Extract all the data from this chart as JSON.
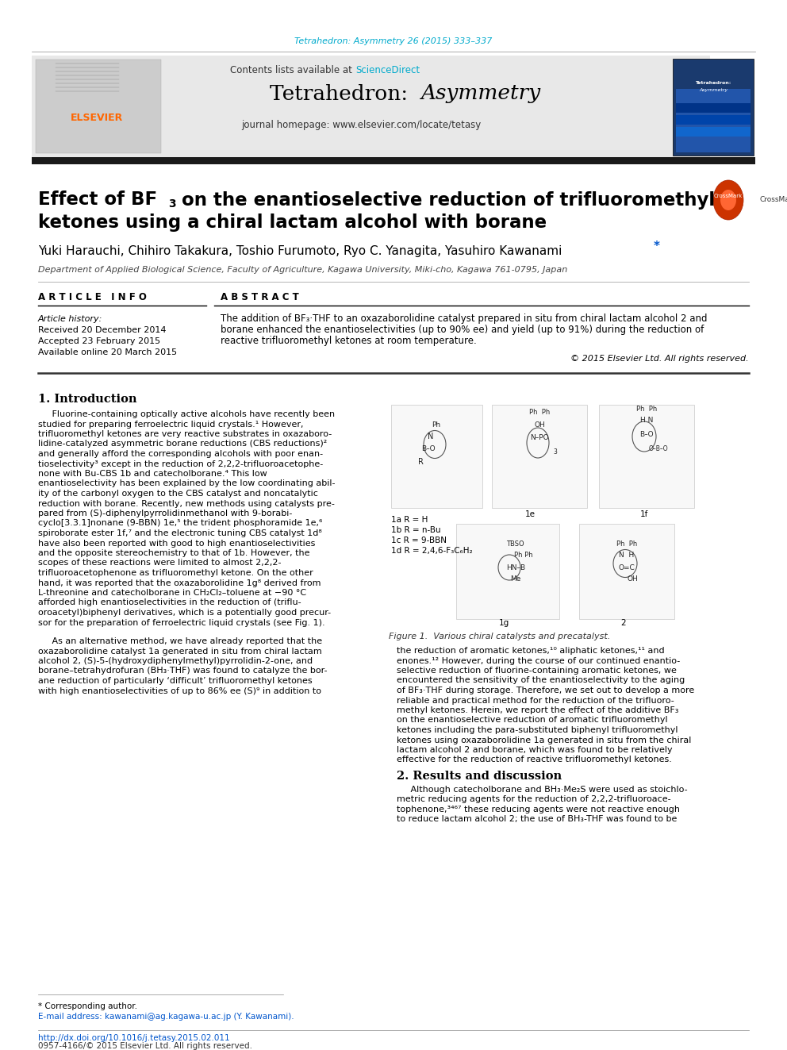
{
  "page_bg": "#ffffff",
  "journal_ref": "Tetrahedron: Asymmetry 26 (2015) 333–337",
  "journal_ref_color": "#00aacc",
  "header_bg": "#e8e8e8",
  "contents_text": "Contents lists available at ",
  "sciencedirect_text": "ScienceDirect",
  "sciencedirect_color": "#00aacc",
  "journal_homepage": "journal homepage: www.elsevier.com/locate/tetasy",
  "elsevier_color": "#ff6600",
  "black_bar_color": "#1a1a1a",
  "affiliation": "Department of Applied Biological Science, Faculty of Agriculture, Kagawa University, Miki-cho, Kagawa 761-0795, Japan",
  "article_info_header": "A R T I C L E   I N F O",
  "abstract_header": "A B S T R A C T",
  "article_history": "Article history:",
  "received": "Received 20 December 2014",
  "accepted": "Accepted 23 February 2015",
  "available": "Available online 20 March 2015",
  "copyright": "© 2015 Elsevier Ltd. All rights reserved.",
  "section1_header": "1. Introduction",
  "section2_header": "2. Results and discussion",
  "figure_caption": "Figure 1.  Various chiral catalysts and precatalyst.",
  "footer_doi": "http://dx.doi.org/10.1016/j.tetasy.2015.02.011",
  "footer_issn": "0957-4166/© 2015 Elsevier Ltd. All rights reserved.",
  "corresponding_note": "* Corresponding author.",
  "email_note": "E-mail address: kawanami@ag.kagawa-u.ac.jp (Y. Kawanami)."
}
